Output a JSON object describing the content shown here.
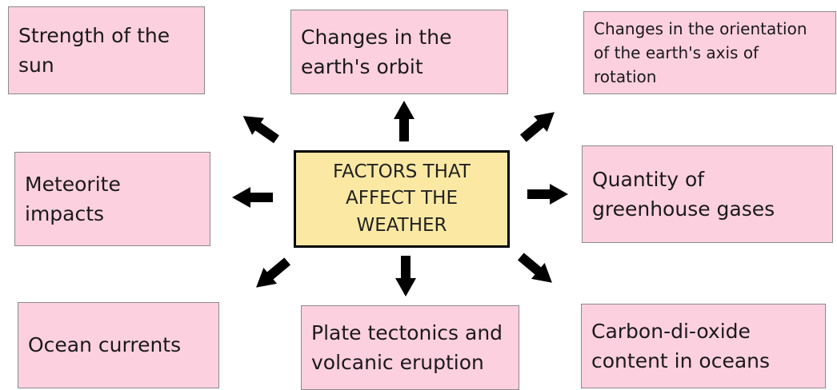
{
  "center": {
    "lines": [
      "FACTORS THAT",
      "AFFECT THE",
      "WEATHER"
    ]
  },
  "nodes": [
    {
      "lines": [
        "Strength of the",
        "sun"
      ]
    },
    {
      "lines": [
        "Changes in the",
        "earth's orbit"
      ]
    },
    {
      "lines": [
        "Changes in the orientation",
        "of the earth's axis of",
        "rotation"
      ]
    },
    {
      "lines": [
        "Meteorite",
        "impacts"
      ]
    },
    {
      "lines": [
        "Quantity of",
        "greenhouse gases"
      ]
    },
    {
      "lines": [
        "Ocean currents"
      ]
    },
    {
      "lines": [
        "Plate tectonics and",
        "volcanic eruption"
      ]
    },
    {
      "lines": [
        "Carbon-di-oxide",
        "content in oceans"
      ]
    }
  ]
}
